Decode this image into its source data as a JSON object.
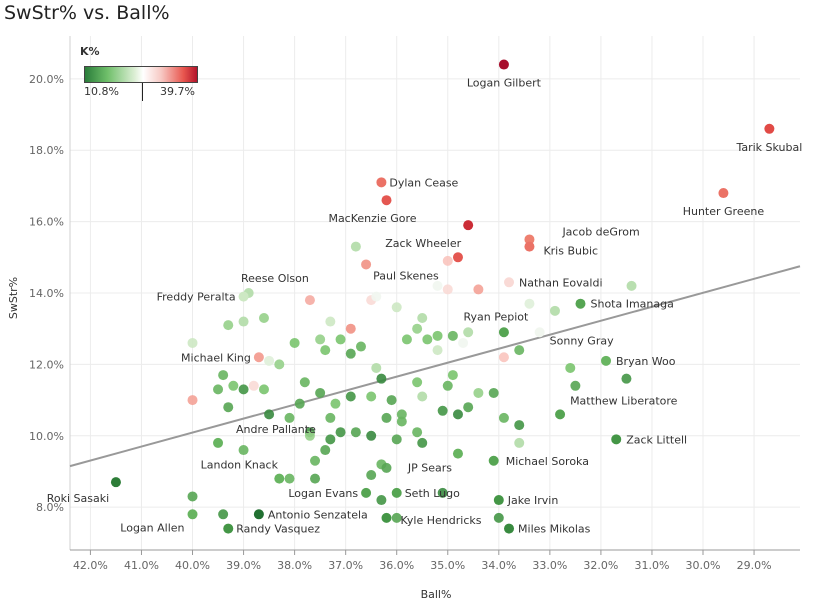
{
  "chart_data": {
    "type": "scatter",
    "title": "SwStr% vs. Ball%",
    "xlabel": "Ball%",
    "ylabel": "SwStr%",
    "xlim": [
      42.4,
      28.1
    ],
    "ylim": [
      6.8,
      21.2
    ],
    "x_ticks": [
      42,
      41,
      40,
      39,
      38,
      37,
      36,
      35,
      34,
      33,
      32,
      31,
      30,
      29
    ],
    "x_tick_labels": [
      "42.0%",
      "41.0%",
      "40.0%",
      "39.0%",
      "38.0%",
      "37.0%",
      "36.0%",
      "35.0%",
      "34.0%",
      "33.0%",
      "32.0%",
      "31.0%",
      "30.0%",
      "29.0%"
    ],
    "y_ticks": [
      8,
      10,
      12,
      14,
      16,
      18,
      20
    ],
    "y_tick_labels": [
      "8.0%",
      "10.0%",
      "12.0%",
      "14.0%",
      "16.0%",
      "18.0%",
      "20.0%"
    ],
    "grid": true,
    "color_legend": {
      "title": "K%",
      "min_label": "10.8%",
      "max_label": "39.7%",
      "min": 10.8,
      "max": 39.7
    },
    "trend_line": {
      "x": [
        42.4,
        28.1
      ],
      "y": [
        9.15,
        14.75
      ]
    },
    "points": [
      {
        "name": "Logan Gilbert",
        "x": 33.9,
        "y": 20.4,
        "k": 39.7,
        "label": "Logan Gilbert"
      },
      {
        "name": "Tarik Skubal",
        "x": 28.7,
        "y": 18.6,
        "k": 33,
        "label": "Tarik Skubal"
      },
      {
        "name": "Hunter Greene",
        "x": 29.6,
        "y": 16.8,
        "k": 30,
        "label": "Hunter Greene"
      },
      {
        "name": "Dylan Cease",
        "x": 36.3,
        "y": 17.1,
        "k": 30,
        "label": "Dylan Cease"
      },
      {
        "name": "MacKenzie Gore",
        "x": 36.2,
        "y": 16.6,
        "k": 32,
        "label": "MacKenzie Gore"
      },
      {
        "name": "Zack Wheeler",
        "x": 34.6,
        "y": 15.9,
        "k": 36,
        "label": "Zack Wheeler"
      },
      {
        "name": "Jacob deGrom",
        "x": 33.4,
        "y": 15.5,
        "k": 29,
        "label": "Jacob deGrom"
      },
      {
        "name": "Kris Bubic",
        "x": 33.4,
        "y": 15.3,
        "k": 30,
        "label": "Kris Bubic"
      },
      {
        "name": "Paul Skenes",
        "x": 34.8,
        "y": 15.0,
        "k": 32,
        "label": "Paul Skenes"
      },
      {
        "name": "Nathan Eovaldi",
        "x": 33.8,
        "y": 14.3,
        "k": 24,
        "label": "Nathan Eovaldi"
      },
      {
        "name": "Reese Olson",
        "x": 37.7,
        "y": 13.8,
        "k": 26,
        "label": "Reese Olson"
      },
      {
        "name": "Freddy Peralta",
        "x": 39.0,
        "y": 13.9,
        "k": 20,
        "label": "Freddy Peralta"
      },
      {
        "name": "Shota Imanaga",
        "x": 32.4,
        "y": 13.7,
        "k": 15,
        "label": "Shota Imanaga"
      },
      {
        "name": "Ryan Pepiot",
        "x": 33.9,
        "y": 12.9,
        "k": 15,
        "label": "Ryan Pepiot"
      },
      {
        "name": "Sonny Gray",
        "x": 33.2,
        "y": 12.9,
        "k": 22,
        "label": "Sonny Gray"
      },
      {
        "name": "Michael King",
        "x": 38.7,
        "y": 12.2,
        "k": 27,
        "label": "Michael King"
      },
      {
        "name": "Bryan Woo",
        "x": 31.9,
        "y": 12.1,
        "k": 16,
        "label": "Bryan Woo"
      },
      {
        "name": "Matthew Liberatore",
        "x": 32.8,
        "y": 10.6,
        "k": 15,
        "label": "Matthew Liberatore"
      },
      {
        "name": "Andre Pallante",
        "x": 39.5,
        "y": 9.8,
        "k": 16,
        "label": "Andre Pallante"
      },
      {
        "name": "Zack Littell",
        "x": 31.7,
        "y": 9.9,
        "k": 14,
        "label": "Zack Littell"
      },
      {
        "name": "Landon Knack",
        "x": 38.3,
        "y": 8.8,
        "k": 16,
        "label": "Landon Knack"
      },
      {
        "name": "Michael Soroka",
        "x": 34.1,
        "y": 9.3,
        "k": 15,
        "label": "Michael Soroka"
      },
      {
        "name": "JP Sears",
        "x": 34.8,
        "y": 9.5,
        "k": 16,
        "label": "JP Sears"
      },
      {
        "name": "Roki Sasaki",
        "x": 41.5,
        "y": 8.7,
        "k": 12,
        "label": "Roki Sasaki"
      },
      {
        "name": "Logan Evans",
        "x": 36.6,
        "y": 8.4,
        "k": 15,
        "label": "Logan Evans"
      },
      {
        "name": "Seth Lugo",
        "x": 36.0,
        "y": 8.4,
        "k": 15,
        "label": "Seth Lugo"
      },
      {
        "name": "Jake Irvin",
        "x": 34.0,
        "y": 8.2,
        "k": 14,
        "label": "Jake Irvin"
      },
      {
        "name": "Antonio Senzatela",
        "x": 38.7,
        "y": 7.8,
        "k": 11,
        "label": "Antonio Senzatela"
      },
      {
        "name": "Kyle Hendricks",
        "x": 36.2,
        "y": 7.7,
        "k": 14,
        "label": "Kyle Hendricks"
      },
      {
        "name": "Logan Allen",
        "x": 40.0,
        "y": 7.8,
        "k": 16,
        "label": "Logan Allen"
      },
      {
        "name": "Randy Vasquez",
        "x": 39.3,
        "y": 7.4,
        "k": 14,
        "label": "Randy Vasquez"
      },
      {
        "name": "Miles Mikolas",
        "x": 33.8,
        "y": 7.4,
        "k": 13,
        "label": "Miles Mikolas"
      },
      {
        "name": "",
        "x": 36.9,
        "y": 13.0,
        "k": 28
      },
      {
        "name": "",
        "x": 36.8,
        "y": 15.3,
        "k": 19
      },
      {
        "name": "",
        "x": 36.5,
        "y": 13.8,
        "k": 24
      },
      {
        "name": "",
        "x": 36.6,
        "y": 14.8,
        "k": 28
      },
      {
        "name": "",
        "x": 36.0,
        "y": 13.6,
        "k": 20
      },
      {
        "name": "",
        "x": 35.5,
        "y": 13.3,
        "k": 19
      },
      {
        "name": "",
        "x": 35.2,
        "y": 14.2,
        "k": 22
      },
      {
        "name": "",
        "x": 35.0,
        "y": 14.1,
        "k": 24
      },
      {
        "name": "",
        "x": 34.4,
        "y": 14.1,
        "k": 27
      },
      {
        "name": "",
        "x": 35.0,
        "y": 14.9,
        "k": 25
      },
      {
        "name": "",
        "x": 33.4,
        "y": 13.7,
        "k": 21
      },
      {
        "name": "",
        "x": 32.9,
        "y": 13.5,
        "k": 19
      },
      {
        "name": "",
        "x": 31.4,
        "y": 14.2,
        "k": 19
      },
      {
        "name": "",
        "x": 35.8,
        "y": 12.7,
        "k": 17
      },
      {
        "name": "",
        "x": 35.6,
        "y": 13.0,
        "k": 18
      },
      {
        "name": "",
        "x": 35.4,
        "y": 12.7,
        "k": 17
      },
      {
        "name": "",
        "x": 35.2,
        "y": 12.8,
        "k": 17
      },
      {
        "name": "",
        "x": 34.9,
        "y": 12.8,
        "k": 16
      },
      {
        "name": "",
        "x": 34.6,
        "y": 12.9,
        "k": 19
      },
      {
        "name": "",
        "x": 34.7,
        "y": 12.6,
        "k": 22
      },
      {
        "name": "",
        "x": 35.2,
        "y": 12.4,
        "k": 20
      },
      {
        "name": "",
        "x": 33.9,
        "y": 12.2,
        "k": 25
      },
      {
        "name": "",
        "x": 33.6,
        "y": 12.4,
        "k": 16
      },
      {
        "name": "",
        "x": 32.6,
        "y": 11.9,
        "k": 17
      },
      {
        "name": "",
        "x": 32.5,
        "y": 11.4,
        "k": 15
      },
      {
        "name": "",
        "x": 31.5,
        "y": 11.6,
        "k": 14
      },
      {
        "name": "",
        "x": 38.0,
        "y": 12.6,
        "k": 17
      },
      {
        "name": "",
        "x": 37.5,
        "y": 12.7,
        "k": 18
      },
      {
        "name": "",
        "x": 37.1,
        "y": 12.7,
        "k": 17
      },
      {
        "name": "",
        "x": 36.7,
        "y": 12.5,
        "k": 16
      },
      {
        "name": "",
        "x": 36.9,
        "y": 12.3,
        "k": 15
      },
      {
        "name": "",
        "x": 37.4,
        "y": 12.4,
        "k": 17
      },
      {
        "name": "",
        "x": 38.3,
        "y": 12.0,
        "k": 18
      },
      {
        "name": "",
        "x": 38.8,
        "y": 11.4,
        "k": 24
      },
      {
        "name": "",
        "x": 39.2,
        "y": 11.4,
        "k": 17
      },
      {
        "name": "",
        "x": 39.4,
        "y": 11.7,
        "k": 16
      },
      {
        "name": "",
        "x": 38.6,
        "y": 11.3,
        "k": 17
      },
      {
        "name": "",
        "x": 39.0,
        "y": 11.3,
        "k": 14
      },
      {
        "name": "",
        "x": 39.5,
        "y": 11.3,
        "k": 16
      },
      {
        "name": "",
        "x": 39.3,
        "y": 10.8,
        "k": 15
      },
      {
        "name": "",
        "x": 40.0,
        "y": 11.0,
        "k": 27
      },
      {
        "name": "",
        "x": 38.5,
        "y": 10.6,
        "k": 13
      },
      {
        "name": "",
        "x": 37.8,
        "y": 11.5,
        "k": 16
      },
      {
        "name": "",
        "x": 37.9,
        "y": 10.9,
        "k": 15
      },
      {
        "name": "",
        "x": 37.5,
        "y": 11.2,
        "k": 15
      },
      {
        "name": "",
        "x": 37.2,
        "y": 10.9,
        "k": 17
      },
      {
        "name": "",
        "x": 36.9,
        "y": 11.1,
        "k": 14
      },
      {
        "name": "",
        "x": 36.5,
        "y": 11.1,
        "k": 17
      },
      {
        "name": "",
        "x": 36.3,
        "y": 11.6,
        "k": 13
      },
      {
        "name": "",
        "x": 36.4,
        "y": 11.9,
        "k": 19
      },
      {
        "name": "",
        "x": 36.1,
        "y": 11.0,
        "k": 15
      },
      {
        "name": "",
        "x": 35.9,
        "y": 10.6,
        "k": 16
      },
      {
        "name": "",
        "x": 35.6,
        "y": 11.5,
        "k": 17
      },
      {
        "name": "",
        "x": 35.5,
        "y": 11.1,
        "k": 19
      },
      {
        "name": "",
        "x": 35.1,
        "y": 10.7,
        "k": 14
      },
      {
        "name": "",
        "x": 35.0,
        "y": 11.4,
        "k": 16
      },
      {
        "name": "",
        "x": 34.9,
        "y": 11.7,
        "k": 17
      },
      {
        "name": "",
        "x": 34.8,
        "y": 10.6,
        "k": 13
      },
      {
        "name": "",
        "x": 34.6,
        "y": 10.8,
        "k": 15
      },
      {
        "name": "",
        "x": 34.4,
        "y": 11.2,
        "k": 18
      },
      {
        "name": "",
        "x": 34.1,
        "y": 11.2,
        "k": 15
      },
      {
        "name": "",
        "x": 33.9,
        "y": 10.5,
        "k": 16
      },
      {
        "name": "",
        "x": 33.6,
        "y": 10.3,
        "k": 14
      },
      {
        "name": "",
        "x": 38.1,
        "y": 10.5,
        "k": 16
      },
      {
        "name": "",
        "x": 37.7,
        "y": 10.1,
        "k": 14
      },
      {
        "name": "",
        "x": 37.3,
        "y": 10.5,
        "k": 16
      },
      {
        "name": "",
        "x": 37.1,
        "y": 10.1,
        "k": 14
      },
      {
        "name": "",
        "x": 36.8,
        "y": 10.1,
        "k": 15
      },
      {
        "name": "",
        "x": 36.5,
        "y": 10.0,
        "k": 13
      },
      {
        "name": "",
        "x": 36.2,
        "y": 10.5,
        "k": 15
      },
      {
        "name": "",
        "x": 36.0,
        "y": 9.9,
        "k": 15
      },
      {
        "name": "",
        "x": 35.9,
        "y": 10.4,
        "k": 16
      },
      {
        "name": "",
        "x": 35.6,
        "y": 10.1,
        "k": 16
      },
      {
        "name": "",
        "x": 35.5,
        "y": 9.8,
        "k": 14
      },
      {
        "name": "",
        "x": 37.4,
        "y": 9.6,
        "k": 15
      },
      {
        "name": "",
        "x": 37.6,
        "y": 9.3,
        "k": 16
      },
      {
        "name": "",
        "x": 37.3,
        "y": 9.9,
        "k": 14
      },
      {
        "name": "",
        "x": 37.7,
        "y": 10.0,
        "k": 18
      },
      {
        "name": "",
        "x": 36.3,
        "y": 9.2,
        "k": 16
      },
      {
        "name": "",
        "x": 36.2,
        "y": 9.1,
        "k": 15
      },
      {
        "name": "",
        "x": 36.5,
        "y": 8.9,
        "k": 15
      },
      {
        "name": "",
        "x": 37.6,
        "y": 8.8,
        "k": 15
      },
      {
        "name": "",
        "x": 38.1,
        "y": 8.8,
        "k": 16
      },
      {
        "name": "",
        "x": 33.6,
        "y": 9.8,
        "k": 19
      },
      {
        "name": "",
        "x": 39.0,
        "y": 9.6,
        "k": 16
      },
      {
        "name": "",
        "x": 39.3,
        "y": 13.1,
        "k": 18
      },
      {
        "name": "",
        "x": 39.0,
        "y": 13.2,
        "k": 19
      },
      {
        "name": "",
        "x": 38.6,
        "y": 13.3,
        "k": 18
      },
      {
        "name": "",
        "x": 38.9,
        "y": 14.0,
        "k": 19
      },
      {
        "name": "",
        "x": 37.3,
        "y": 13.2,
        "k": 20
      },
      {
        "name": "",
        "x": 36.4,
        "y": 13.9,
        "k": 22
      },
      {
        "name": "",
        "x": 38.5,
        "y": 12.1,
        "k": 21
      },
      {
        "name": "",
        "x": 40.0,
        "y": 12.6,
        "k": 20
      },
      {
        "name": "",
        "x": 36.3,
        "y": 8.2,
        "k": 14
      },
      {
        "name": "",
        "x": 36.0,
        "y": 7.7,
        "k": 15
      },
      {
        "name": "",
        "x": 34.0,
        "y": 7.7,
        "k": 14
      },
      {
        "name": "",
        "x": 39.4,
        "y": 7.8,
        "k": 14
      },
      {
        "name": "",
        "x": 35.1,
        "y": 8.4,
        "k": 13
      },
      {
        "name": "",
        "x": 40.0,
        "y": 8.3,
        "k": 15
      }
    ]
  }
}
